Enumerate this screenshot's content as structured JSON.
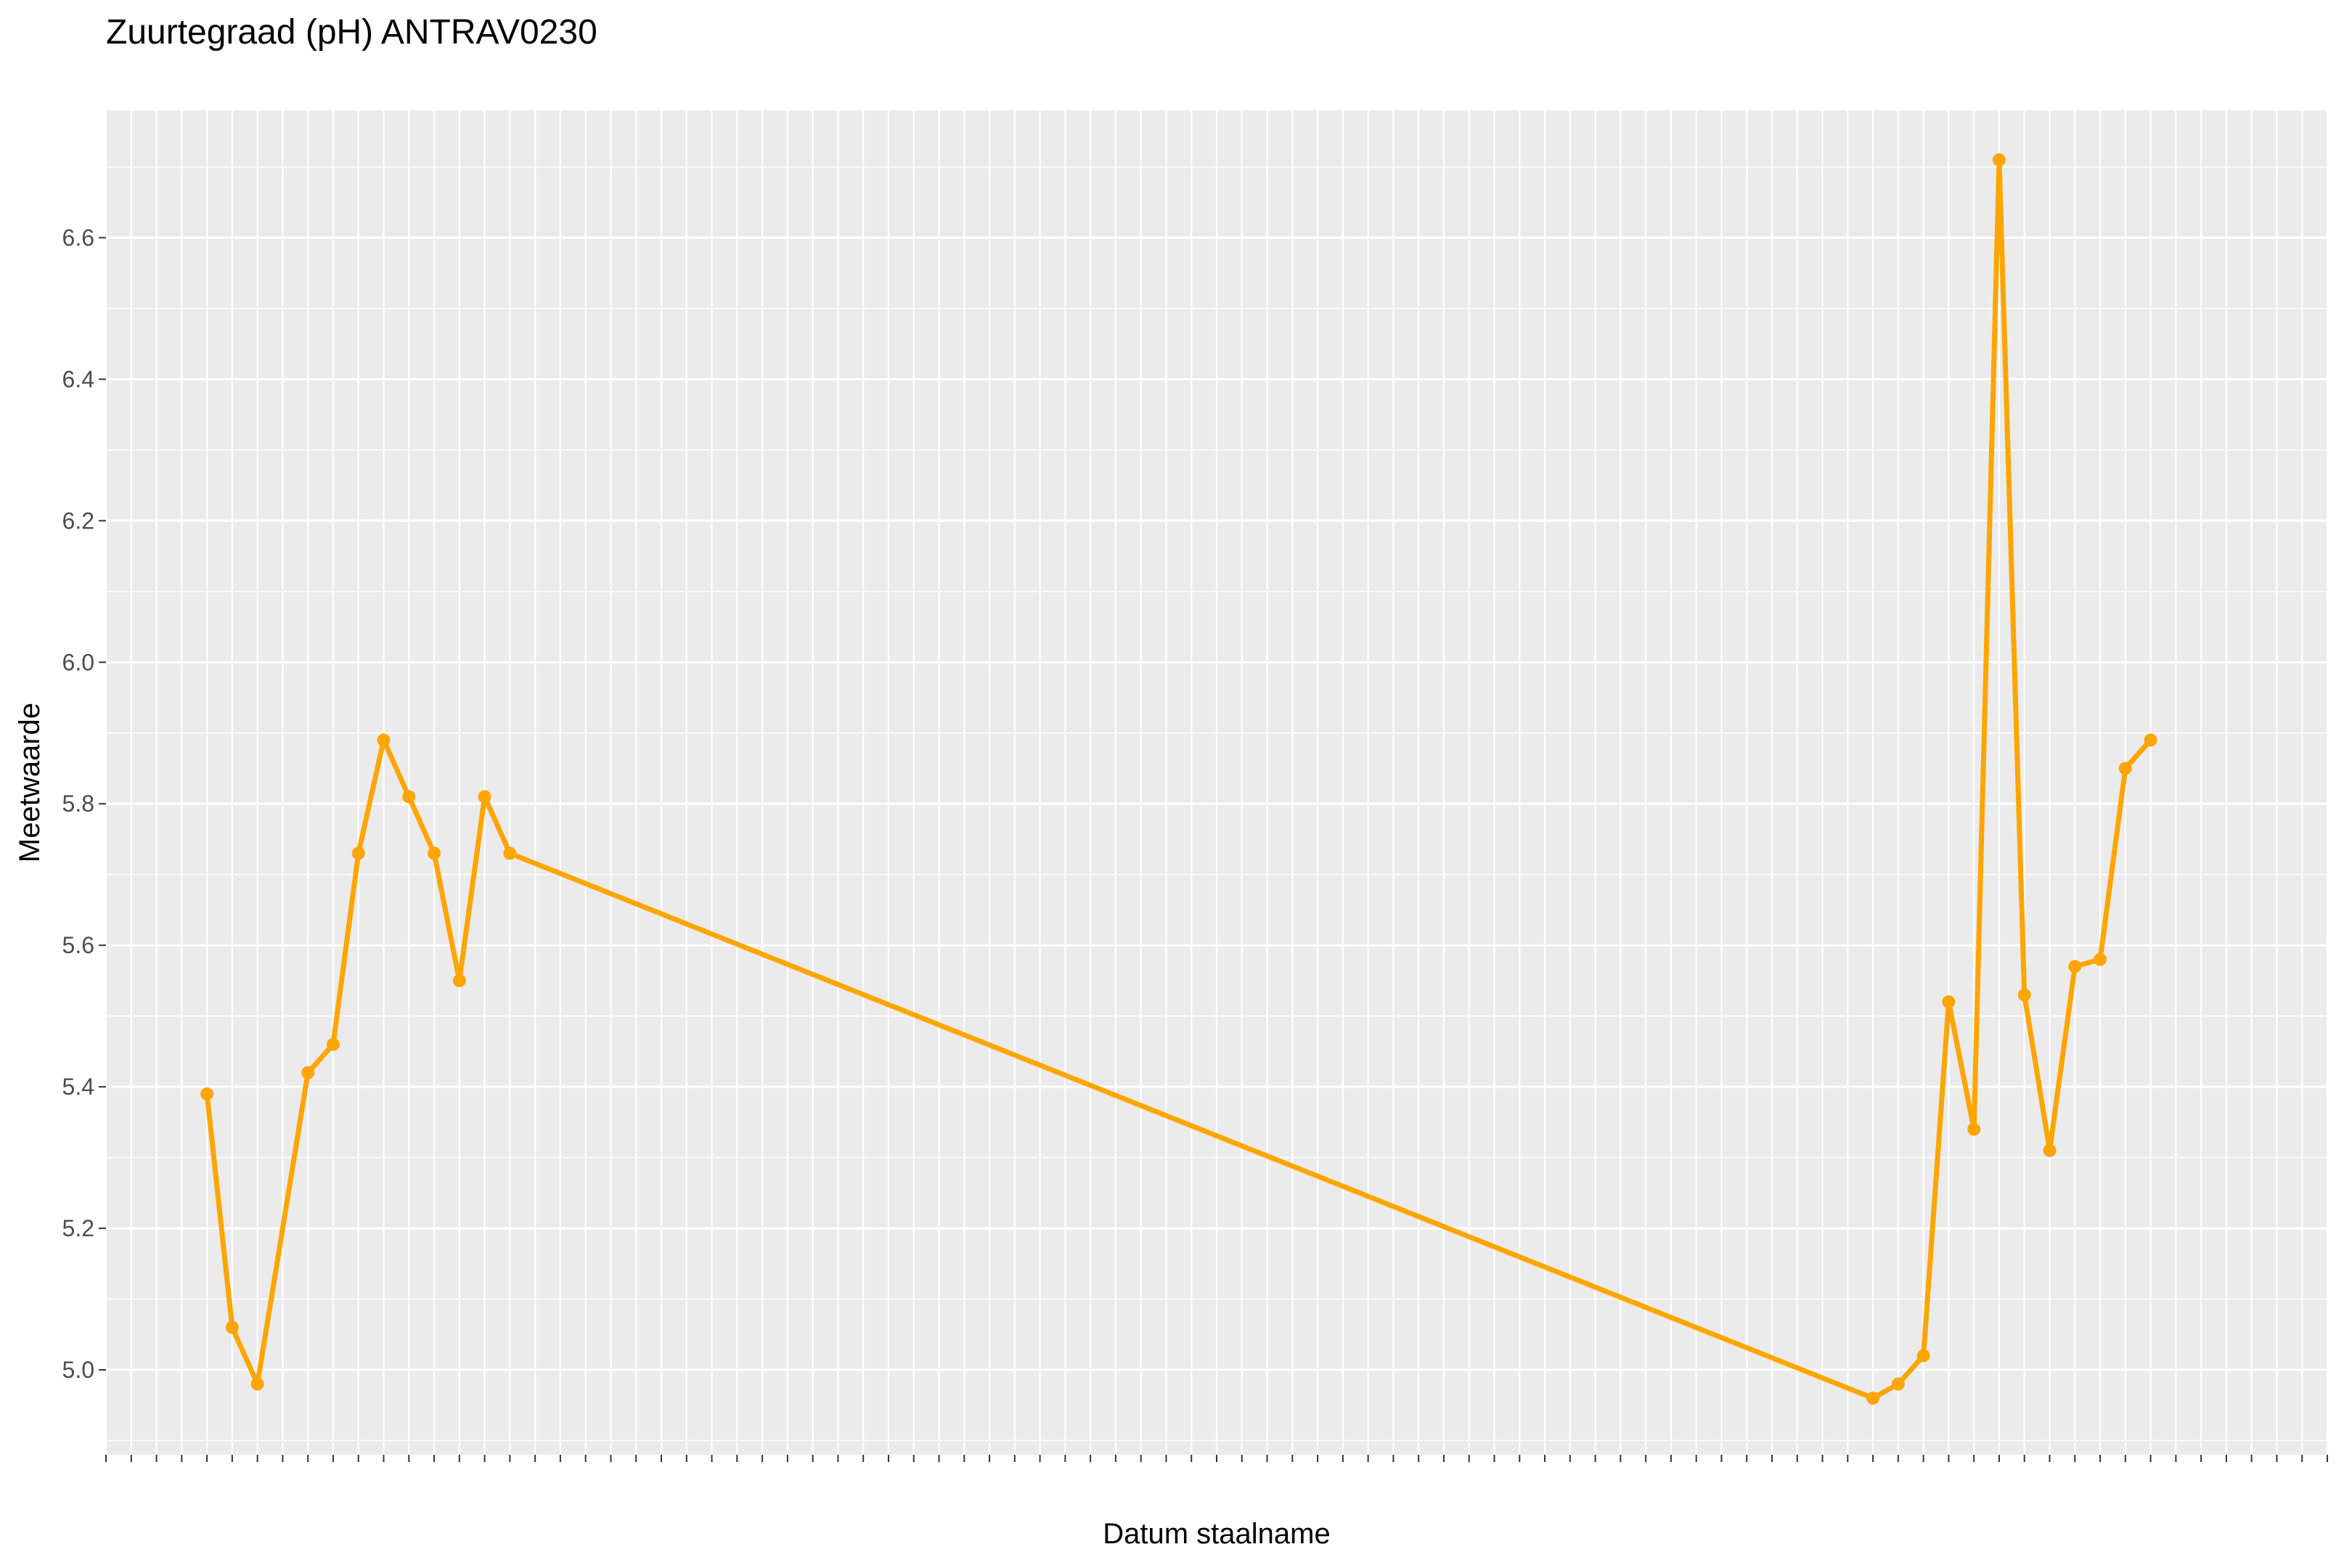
{
  "chart_data": {
    "type": "line",
    "title": "Zuurtegraad (pH) ANTRAV0230",
    "xlabel": "Datum staalname",
    "ylabel": "Meetwaarde",
    "grid": true,
    "legend": "none",
    "ylim": [
      4.88,
      6.78
    ],
    "yticks": [
      "5.0",
      "5.2",
      "5.4",
      "5.6",
      "5.8",
      "6.0",
      "6.2",
      "6.4",
      "6.6"
    ],
    "x_note": "x-axis tick labels are overplotted and illegible; values below are sequential sample indices",
    "series": [
      {
        "color": "#FFA500",
        "points": [
          {
            "x": 4,
            "y": 5.39
          },
          {
            "x": 5,
            "y": 5.06
          },
          {
            "x": 6,
            "y": 4.98
          },
          {
            "x": 8,
            "y": 5.42
          },
          {
            "x": 9,
            "y": 5.46
          },
          {
            "x": 10,
            "y": 5.73
          },
          {
            "x": 11,
            "y": 5.89
          },
          {
            "x": 12,
            "y": 5.81
          },
          {
            "x": 13,
            "y": 5.73
          },
          {
            "x": 14,
            "y": 5.55
          },
          {
            "x": 15,
            "y": 5.81
          },
          {
            "x": 16,
            "y": 5.73
          },
          {
            "x": 70,
            "y": 4.96
          },
          {
            "x": 71,
            "y": 4.98
          },
          {
            "x": 72,
            "y": 5.02
          },
          {
            "x": 73,
            "y": 5.52
          },
          {
            "x": 74,
            "y": 5.34
          },
          {
            "x": 75,
            "y": 6.71
          },
          {
            "x": 76,
            "y": 5.53
          },
          {
            "x": 77,
            "y": 5.31
          },
          {
            "x": 78,
            "y": 5.57
          },
          {
            "x": 79,
            "y": 5.58
          },
          {
            "x": 80,
            "y": 5.85
          },
          {
            "x": 81,
            "y": 5.89
          }
        ]
      }
    ]
  }
}
